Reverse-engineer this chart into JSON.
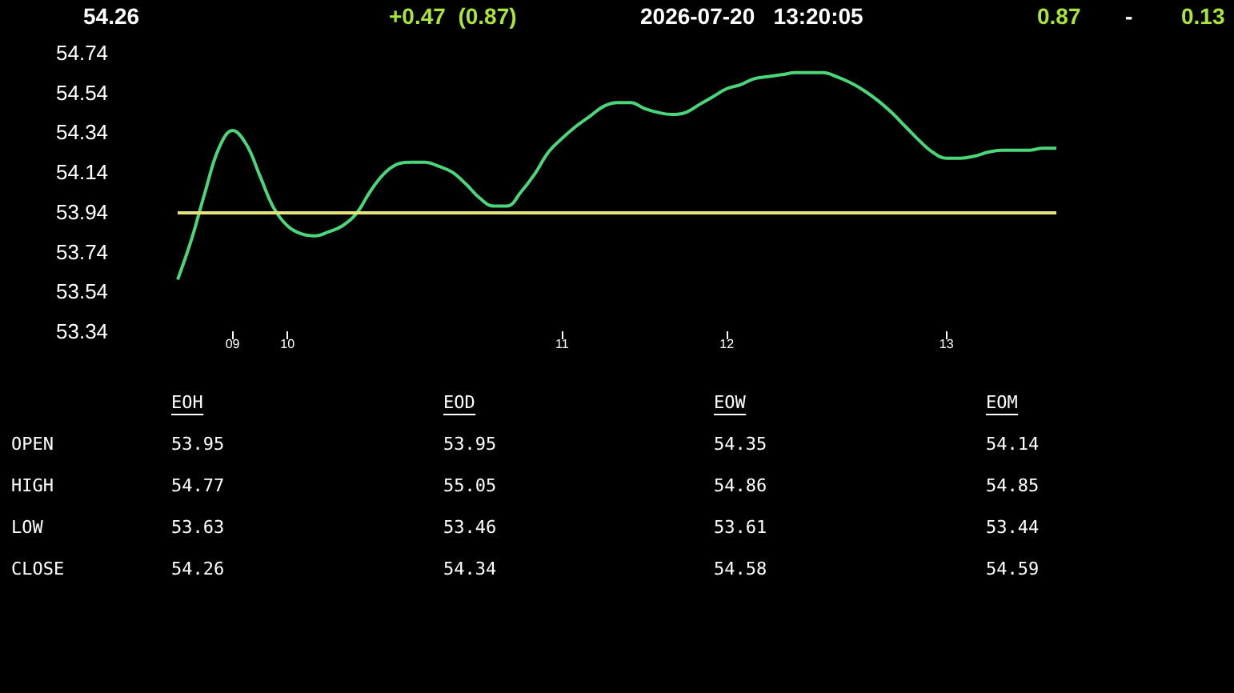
{
  "chart_data": {
    "type": "line",
    "categories": [
      null,
      null,
      null,
      null,
      "09",
      null,
      null,
      null,
      "10",
      null,
      null,
      null,
      null,
      null,
      null,
      null,
      null,
      null,
      null,
      null,
      null,
      null,
      null,
      null,
      null,
      null,
      null,
      null,
      "11",
      null,
      null,
      null,
      null,
      null,
      null,
      null,
      null,
      null,
      null,
      null,
      "12",
      null,
      null,
      null,
      null,
      null,
      null,
      null,
      null,
      null,
      null,
      null,
      null,
      null,
      null,
      null,
      "13",
      null,
      null,
      null,
      null,
      null,
      null,
      null,
      null
    ],
    "series": [
      {
        "color": "#4cd67a",
        "values": [
          53.6,
          53.8,
          54.04,
          54.26,
          54.35,
          54.28,
          54.12,
          53.96,
          53.87,
          53.83,
          53.82,
          53.84,
          53.87,
          53.93,
          54.04,
          54.13,
          54.18,
          54.19,
          54.19,
          54.17,
          54.14,
          54.08,
          54.01,
          53.97,
          53.97,
          54.04,
          54.13,
          54.24,
          54.31,
          54.37,
          54.42,
          54.47,
          54.49,
          54.49,
          54.46,
          54.44,
          54.43,
          54.44,
          54.48,
          54.52,
          54.56,
          54.58,
          54.61,
          54.62,
          54.63,
          54.64,
          54.64,
          54.64,
          54.62,
          54.59,
          54.55,
          54.5,
          54.44,
          54.37,
          54.3,
          54.24,
          54.21,
          54.21,
          54.22,
          54.24,
          54.25,
          54.25,
          54.25,
          54.26,
          54.26
        ]
      }
    ],
    "ylim": [
      53.34,
      54.74
    ],
    "yticks": [
      53.34,
      53.54,
      53.74,
      53.94,
      54.14,
      54.34,
      54.54,
      54.74
    ],
    "ref_lines": [
      {
        "axis": "y",
        "value": 53.94,
        "color": "#e3e57a"
      }
    ],
    "marker": "none",
    "line_style": "solid",
    "grid": false,
    "annotations": [
      "54.26",
      "+0.47  (0.87)",
      "2026-07-20   13:20:05",
      "0.87",
      "-",
      "0.13",
      "EOH",
      "EOD",
      "EOW",
      "EOM",
      "OPEN",
      "53.95",
      "53.95",
      "54.35",
      "54.14",
      "HIGH",
      "54.77",
      "55.05",
      "54.86",
      "54.85",
      "LOW",
      "53.63",
      "53.46",
      "53.61",
      "53.44",
      "CLOSE",
      "54.26",
      "54.34",
      "54.58",
      "54.59"
    ]
  }
}
